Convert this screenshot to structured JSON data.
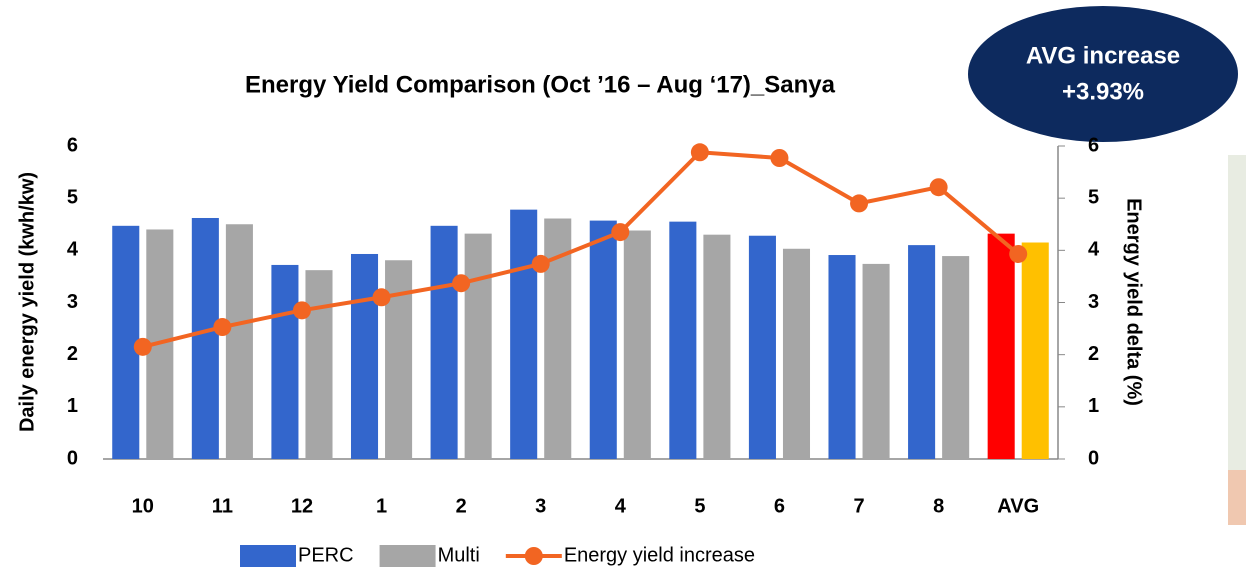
{
  "chart_data": {
    "type": "bar",
    "title": "Energy Yield Comparison (Oct ’16 – Aug ‘17)_Sanya",
    "annotation": [
      "AVG increase",
      "+3.93%"
    ],
    "y_label": "Daily energy yield (kwh/kw)",
    "y2_label": "Energy yield delta (%)",
    "categories": [
      "10",
      "11",
      "12",
      "1",
      "2",
      "3",
      "4",
      "5",
      "6",
      "7",
      "8",
      "AVG"
    ],
    "series": [
      {
        "name": "PERC",
        "type": "bar",
        "color": "#3366cc",
        "colors": [
          "#3366cc",
          "#3366cc",
          "#3366cc",
          "#3366cc",
          "#3366cc",
          "#3366cc",
          "#3366cc",
          "#3366cc",
          "#3366cc",
          "#3366cc",
          "#3366cc",
          "#ff0000"
        ],
        "values": [
          4.47,
          4.62,
          3.72,
          3.93,
          4.47,
          4.78,
          4.57,
          4.55,
          4.28,
          3.91,
          4.1,
          4.32
        ]
      },
      {
        "name": "Multi",
        "type": "bar",
        "color": "#a6a6a6",
        "colors": [
          "#a6a6a6",
          "#a6a6a6",
          "#a6a6a6",
          "#a6a6a6",
          "#a6a6a6",
          "#a6a6a6",
          "#a6a6a6",
          "#a6a6a6",
          "#a6a6a6",
          "#a6a6a6",
          "#a6a6a6",
          "#ffc000"
        ],
        "values": [
          4.4,
          4.5,
          3.62,
          3.81,
          4.32,
          4.61,
          4.38,
          4.3,
          4.03,
          3.74,
          3.89,
          4.15
        ]
      },
      {
        "name": "Energy yield increase",
        "type": "line",
        "axis": "y2",
        "color": "#f26522",
        "values": [
          2.15,
          2.53,
          2.85,
          3.1,
          3.37,
          3.74,
          4.35,
          5.88,
          5.77,
          4.9,
          5.21,
          3.93
        ]
      }
    ],
    "ylim": [
      0,
      6
    ],
    "yticks": [
      0,
      1,
      2,
      3,
      4,
      5,
      6
    ],
    "y2lim": [
      0,
      6
    ],
    "y2ticks": [
      0,
      1,
      2,
      3,
      4,
      5,
      6
    ],
    "grid": false,
    "legend": "bottom"
  }
}
